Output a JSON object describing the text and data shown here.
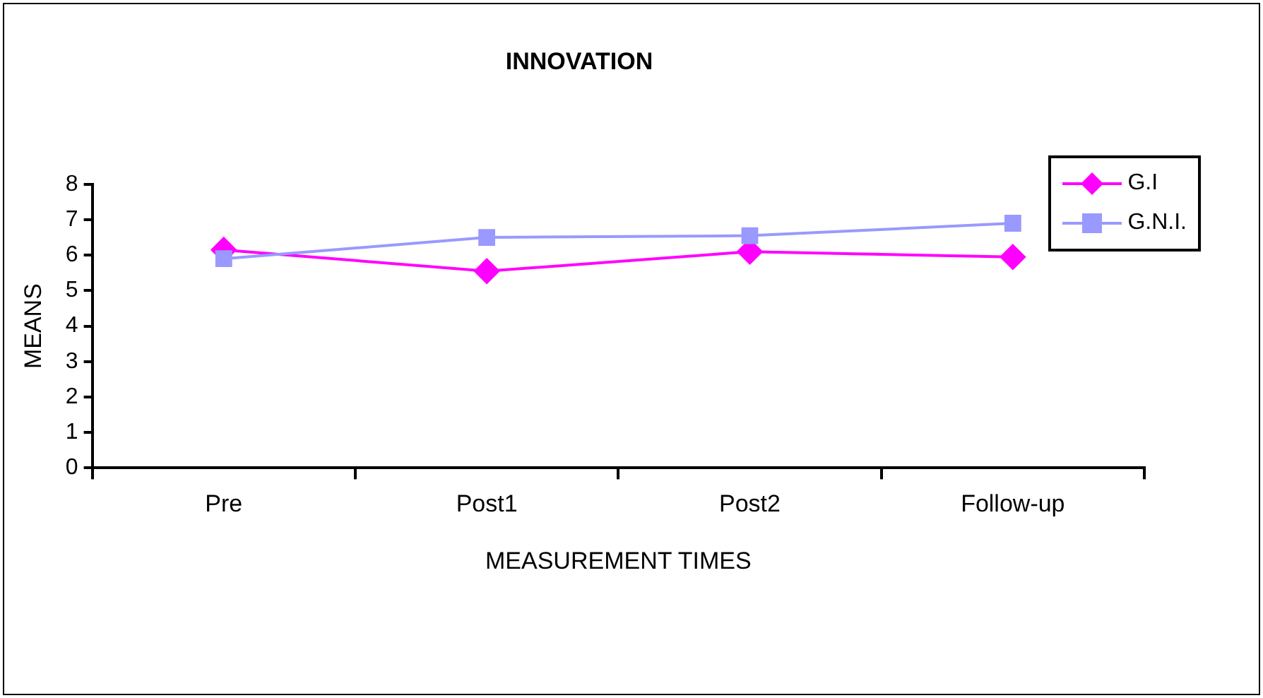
{
  "chart_data": {
    "type": "line",
    "title": "INNOVATION",
    "xlabel": "MEASUREMENT TIMES",
    "ylabel": "MEANS",
    "categories": [
      "Pre",
      "Post1",
      "Post2",
      "Follow-up"
    ],
    "series": [
      {
        "name": "G.I",
        "color": "#ff00ff",
        "marker": "diamond",
        "values": [
          6.15,
          5.55,
          6.1,
          5.95
        ]
      },
      {
        "name": "G.N.I.",
        "color": "#9999ff",
        "marker": "square",
        "values": [
          5.9,
          6.5,
          6.55,
          6.9
        ]
      }
    ],
    "ylim": [
      0,
      8
    ],
    "yticks": [
      0,
      1,
      2,
      3,
      4,
      5,
      6,
      7,
      8
    ],
    "grid": false,
    "legend": "top right"
  }
}
